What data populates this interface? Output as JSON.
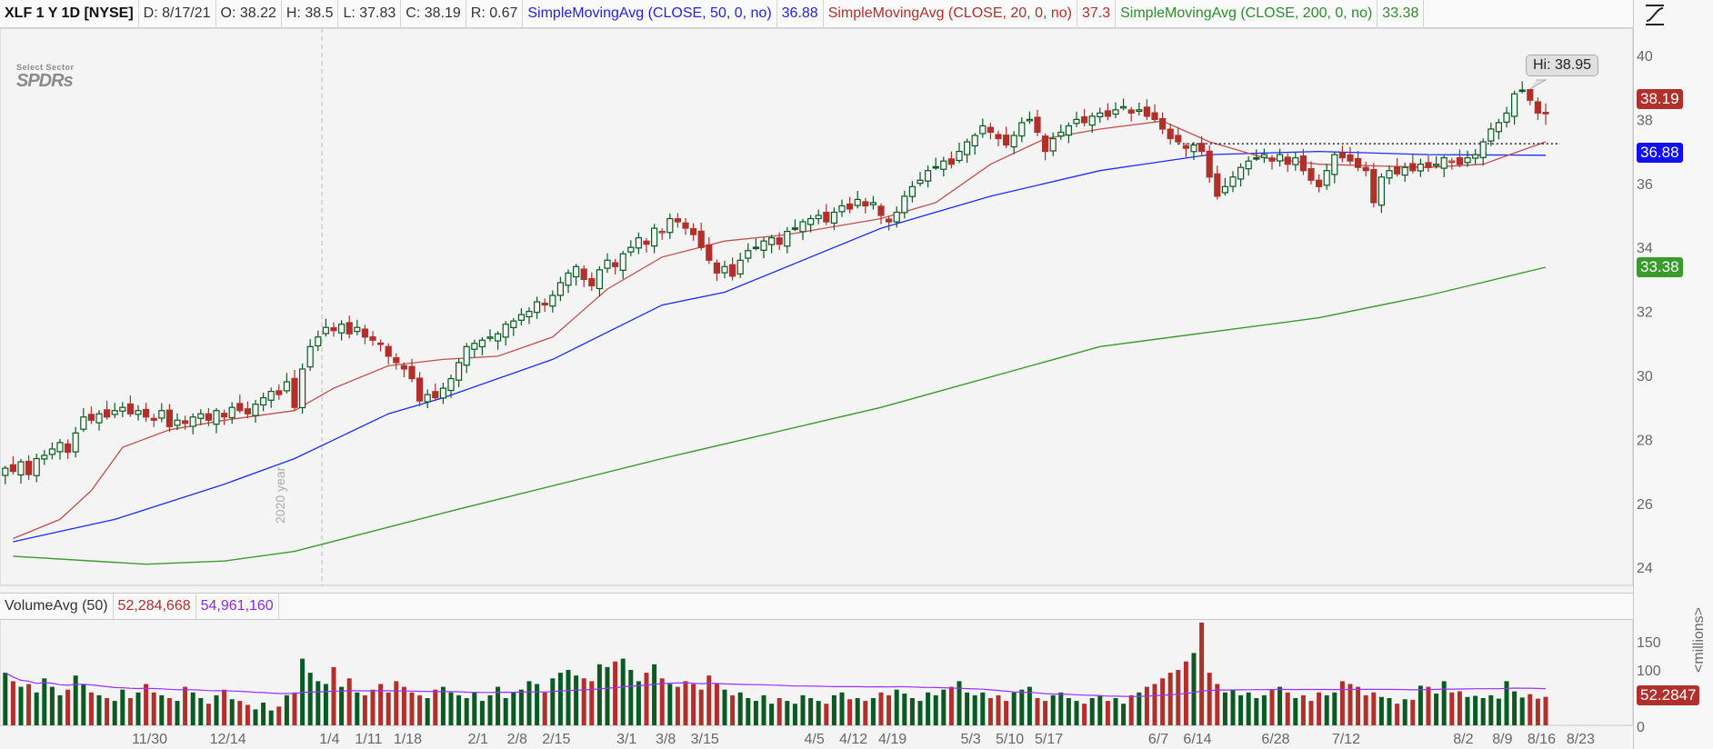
{
  "header": {
    "symbol": "XLF 1 Y 1D [NYSE]",
    "date": "D: 8/17/21",
    "open": "O: 38.22",
    "high": "H: 38.5",
    "low": "L: 37.83",
    "close": "C: 38.19",
    "range": "R: 0.67",
    "sma50_label": "SimpleMovingAvg (CLOSE, 50, 0, no)",
    "sma50_value": "36.88",
    "sma20_label": "SimpleMovingAvg (CLOSE, 20, 0, no)",
    "sma20_value": "37.3",
    "sma200_label": "SimpleMovingAvg (CLOSE, 200, 0, no)",
    "sma200_value": "33.38"
  },
  "logo": {
    "line1": "Select Sector",
    "line2": "SPDRs"
  },
  "toolbar_icon": "drawing-tools-icon",
  "year_marker": "2020 year",
  "hi_bubble": "Hi: 38.95",
  "price_labels": {
    "last": "38.19",
    "sma50": "36.88",
    "sma200": "33.38"
  },
  "volume_header": {
    "label": "VolumeAvg (50)",
    "volume": "52,284,668",
    "avg": "54,961,160"
  },
  "volume_label": "52.2847",
  "volume_unit": "<millions>",
  "colors": {
    "up": "#0b5a23",
    "down": "#b0302c",
    "sma50": "#1c2cf0",
    "sma20": "#c0504d",
    "sma200": "#3a9a2e",
    "vol_avg": "#9b30ff"
  },
  "chart_data": {
    "type": "candlestick",
    "last_date": "2021-08-17",
    "last_candle": {
      "open": 38.22,
      "high": 38.5,
      "low": 37.83,
      "close": 38.19
    },
    "period_high": 38.95,
    "close": [
      27.1,
      27.0,
      27.3,
      26.9,
      27.4,
      27.5,
      27.7,
      27.9,
      27.6,
      28.2,
      28.7,
      28.6,
      28.8,
      28.7,
      28.9,
      29.0,
      28.8,
      28.9,
      28.7,
      28.6,
      28.9,
      28.4,
      28.6,
      28.5,
      28.7,
      28.8,
      28.6,
      28.9,
      28.7,
      29.0,
      28.9,
      28.8,
      29.1,
      29.3,
      29.5,
      29.4,
      29.8,
      29.0,
      30.2,
      30.9,
      31.2,
      31.5,
      31.4,
      31.6,
      31.3,
      31.5,
      31.2,
      31.1,
      31.0,
      30.6,
      30.4,
      30.2,
      29.9,
      29.2,
      29.4,
      29.3,
      29.6,
      29.9,
      30.4,
      30.9,
      31.0,
      31.1,
      31.2,
      31.3,
      31.6,
      31.7,
      31.9,
      32.0,
      32.3,
      32.2,
      32.5,
      32.9,
      33.2,
      33.4,
      33.0,
      32.8,
      33.3,
      33.6,
      33.4,
      33.8,
      34.0,
      34.3,
      34.1,
      34.6,
      34.5,
      34.9,
      34.8,
      34.6,
      34.4,
      34.0,
      33.6,
      33.2,
      33.4,
      33.1,
      33.6,
      33.9,
      34.0,
      34.2,
      34.3,
      34.1,
      34.5,
      34.6,
      34.8,
      34.9,
      35.0,
      34.8,
      35.1,
      35.3,
      35.2,
      35.5,
      35.3,
      35.4,
      35.0,
      34.8,
      35.1,
      35.6,
      35.9,
      36.1,
      36.4,
      36.5,
      36.7,
      36.6,
      37.0,
      37.3,
      37.5,
      37.8,
      37.6,
      37.4,
      37.2,
      37.5,
      37.9,
      38.0,
      37.6,
      37.0,
      37.4,
      37.6,
      37.8,
      38.0,
      37.9,
      38.1,
      38.2,
      38.1,
      38.3,
      38.4,
      38.2,
      38.3,
      38.1,
      38.0,
      37.7,
      37.4,
      37.3,
      37.1,
      37.2,
      37.0,
      36.2,
      35.6,
      35.9,
      36.2,
      36.5,
      36.7,
      36.8,
      36.9,
      36.7,
      36.9,
      36.6,
      36.8,
      36.4,
      36.1,
      35.9,
      36.4,
      36.9,
      36.8,
      36.7,
      36.5,
      36.4,
      35.4,
      36.2,
      36.4,
      36.3,
      36.5,
      36.4,
      36.6,
      36.5,
      36.6,
      36.8,
      36.7,
      36.6,
      36.8,
      36.9,
      37.3,
      37.7,
      37.9,
      38.2,
      38.8,
      38.9,
      38.6,
      38.2,
      38.19
    ],
    "volume_millions": [
      95,
      80,
      70,
      75,
      60,
      85,
      70,
      55,
      65,
      90,
      75,
      60,
      55,
      50,
      45,
      65,
      50,
      60,
      75,
      60,
      55,
      50,
      45,
      70,
      60,
      50,
      40,
      55,
      65,
      48,
      45,
      38,
      30,
      42,
      28,
      35,
      55,
      60,
      120,
      95,
      80,
      75,
      105,
      70,
      85,
      60,
      55,
      65,
      75,
      60,
      80,
      70,
      60,
      55,
      50,
      65,
      70,
      60,
      55,
      50,
      60,
      45,
      55,
      70,
      50,
      60,
      65,
      80,
      75,
      60,
      85,
      95,
      100,
      90,
      85,
      80,
      110,
      105,
      115,
      120,
      100,
      80,
      95,
      110,
      85,
      75,
      70,
      80,
      75,
      65,
      90,
      75,
      65,
      55,
      60,
      50,
      45,
      55,
      40,
      50,
      45,
      40,
      55,
      50,
      45,
      40,
      55,
      60,
      48,
      50,
      45,
      50,
      60,
      55,
      65,
      58,
      50,
      45,
      60,
      55,
      65,
      70,
      80,
      60,
      55,
      60,
      50,
      55,
      45,
      60,
      65,
      70,
      50,
      45,
      55,
      60,
      50,
      45,
      40,
      50,
      55,
      45,
      50,
      40,
      55,
      60,
      70,
      75,
      85,
      95,
      100,
      115,
      130,
      184,
      95,
      75,
      60,
      65,
      55,
      60,
      50,
      55,
      65,
      70,
      60,
      50,
      55,
      45,
      60,
      55,
      60,
      80,
      75,
      70,
      55,
      60,
      52,
      50,
      40,
      48,
      47,
      72,
      70,
      58,
      80,
      60,
      62,
      52,
      54,
      50,
      55,
      49,
      80,
      62,
      51,
      57,
      49,
      52.28
    ],
    "sma20": [
      [
        "2020-11-04",
        24.9
      ],
      [
        "2020-11-12",
        25.5
      ],
      [
        "2020-11-18",
        26.4
      ],
      [
        "2020-11-24",
        27.75
      ],
      [
        "2020-12-03",
        28.3
      ],
      [
        "2020-12-14",
        28.6
      ],
      [
        "2020-12-28",
        28.9
      ],
      [
        "2021-01-05",
        29.6
      ],
      [
        "2021-01-14",
        30.3
      ],
      [
        "2021-01-26",
        30.5
      ],
      [
        "2021-02-04",
        30.6
      ],
      [
        "2021-02-16",
        31.2
      ],
      [
        "2021-02-25",
        32.7
      ],
      [
        "2021-03-08",
        33.7
      ],
      [
        "2021-03-18",
        34.2
      ],
      [
        "2021-03-30",
        34.4
      ],
      [
        "2021-04-16",
        34.9
      ],
      [
        "2021-04-27",
        35.4
      ],
      [
        "2021-05-06",
        36.6
      ],
      [
        "2021-05-17",
        37.4
      ],
      [
        "2021-05-26",
        37.7
      ],
      [
        "2021-06-08",
        37.95
      ],
      [
        "2021-06-16",
        37.3
      ],
      [
        "2021-06-25",
        36.8
      ],
      [
        "2021-07-07",
        36.6
      ],
      [
        "2021-07-27",
        36.5
      ],
      [
        "2021-08-05",
        36.6
      ],
      [
        "2021-08-17",
        37.3
      ]
    ],
    "sma50": [
      [
        "2020-11-04",
        24.8
      ],
      [
        "2020-11-23",
        25.5
      ],
      [
        "2020-12-14",
        26.6
      ],
      [
        "2020-12-28",
        27.4
      ],
      [
        "2021-01-14",
        28.8
      ],
      [
        "2021-01-26",
        29.3
      ],
      [
        "2021-02-16",
        30.5
      ],
      [
        "2021-03-08",
        32.2
      ],
      [
        "2021-03-18",
        32.6
      ],
      [
        "2021-04-16",
        34.6
      ],
      [
        "2021-05-06",
        35.6
      ],
      [
        "2021-05-26",
        36.4
      ],
      [
        "2021-06-16",
        36.9
      ],
      [
        "2021-07-07",
        37.0
      ],
      [
        "2021-07-27",
        36.9
      ],
      [
        "2021-08-17",
        36.88
      ]
    ],
    "sma200": [
      [
        "2020-11-04",
        24.35
      ],
      [
        "2020-11-30",
        24.1
      ],
      [
        "2020-12-14",
        24.2
      ],
      [
        "2020-12-28",
        24.5
      ],
      [
        "2021-01-26",
        25.7
      ],
      [
        "2021-03-08",
        27.4
      ],
      [
        "2021-04-16",
        29.0
      ],
      [
        "2021-05-26",
        30.9
      ],
      [
        "2021-07-07",
        31.8
      ],
      [
        "2021-07-27",
        32.5
      ],
      [
        "2021-08-17",
        33.38
      ]
    ],
    "resistance_level": 37.24,
    "y_ticks": [
      24,
      26,
      28,
      30,
      32,
      34,
      36,
      38,
      40
    ],
    "volume_ticks": [
      0,
      100,
      150
    ],
    "x_tick_labels": [
      "11/30",
      "12/14",
      "1/4",
      "1/11",
      "1/18",
      "2/1",
      "2/8",
      "2/15",
      "3/1",
      "3/8",
      "3/15",
      "4/5",
      "4/12",
      "4/19",
      "5/3",
      "5/10",
      "5/17",
      "6/7",
      "6/14",
      "6/28",
      "7/12",
      "8/2",
      "8/9",
      "8/16",
      "8/23"
    ],
    "ylim": [
      23.4,
      40.9
    ]
  }
}
